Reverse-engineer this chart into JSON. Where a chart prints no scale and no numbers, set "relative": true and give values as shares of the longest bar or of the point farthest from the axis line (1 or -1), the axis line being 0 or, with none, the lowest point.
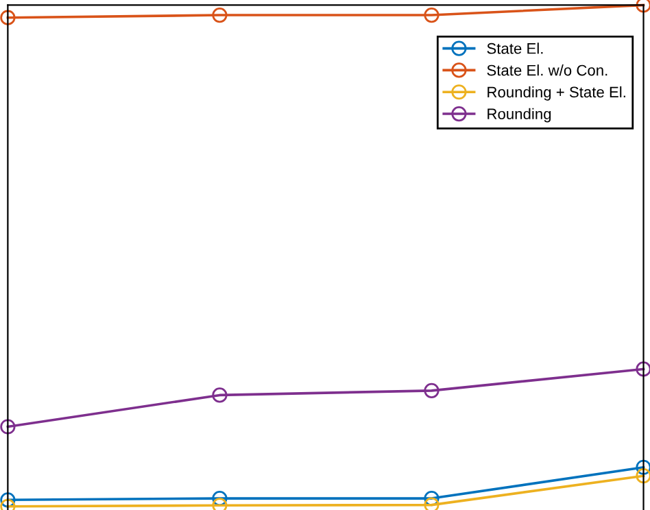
{
  "chart_data": {
    "type": "line",
    "relative": true,
    "categories": [
      null,
      null,
      null,
      null
    ],
    "marker": "circle",
    "line_style": "solid",
    "grid": false,
    "legend": "top right",
    "series": [
      {
        "name": "State El.",
        "color": "#0072bd",
        "values": [
          0.013,
          0.016,
          0.016,
          0.078
        ]
      },
      {
        "name": "State El. w/o Con.",
        "color": "#d95319",
        "values": [
          0.975,
          0.98,
          0.98,
          1.0
        ]
      },
      {
        "name": "Rounding + State El.",
        "color": "#edb120",
        "values": [
          0.0,
          0.002,
          0.003,
          0.061
        ]
      },
      {
        "name": "Rounding",
        "color": "#7e2f8e",
        "values": [
          0.159,
          0.222,
          0.231,
          0.274
        ]
      }
    ]
  }
}
